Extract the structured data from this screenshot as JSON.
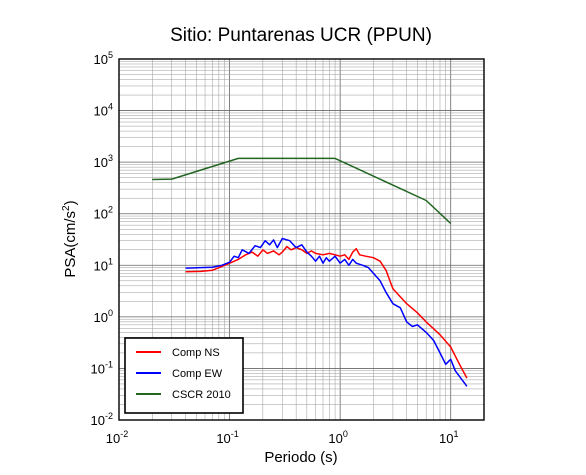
{
  "chart_data": {
    "type": "line",
    "title": "Sitio: Puntarenas UCR (PPUN)",
    "xlabel": "Periodo (s)",
    "ylabel_main": "PSA(cm/s",
    "ylabel_sup": "2",
    "ylabel_close": ")",
    "x_scale": "log",
    "y_scale": "log",
    "xlim": [
      0.01,
      20
    ],
    "ylim": [
      0.01,
      100000
    ],
    "grid": true,
    "legend_position": "bottom-left",
    "x_ticks": [
      {
        "base": "10",
        "exp": "-2",
        "value": 0.01
      },
      {
        "base": "10",
        "exp": "-1",
        "value": 0.1
      },
      {
        "base": "10",
        "exp": "0",
        "value": 1
      },
      {
        "base": "10",
        "exp": "1",
        "value": 10
      }
    ],
    "y_ticks": [
      {
        "base": "10",
        "exp": "-2",
        "value": 0.01
      },
      {
        "base": "10",
        "exp": "-1",
        "value": 0.1
      },
      {
        "base": "10",
        "exp": "0",
        "value": 1
      },
      {
        "base": "10",
        "exp": "1",
        "value": 10
      },
      {
        "base": "10",
        "exp": "2",
        "value": 100
      },
      {
        "base": "10",
        "exp": "3",
        "value": 1000
      },
      {
        "base": "10",
        "exp": "4",
        "value": 10000
      },
      {
        "base": "10",
        "exp": "5",
        "value": 100000
      }
    ],
    "series": [
      {
        "name": "Comp NS",
        "color": "#ff0000",
        "points": [
          [
            0.04,
            7.5
          ],
          [
            0.055,
            7.6
          ],
          [
            0.07,
            8.0
          ],
          [
            0.085,
            9.5
          ],
          [
            0.1,
            11
          ],
          [
            0.12,
            13
          ],
          [
            0.14,
            16
          ],
          [
            0.16,
            18
          ],
          [
            0.18,
            15
          ],
          [
            0.2,
            20
          ],
          [
            0.22,
            17
          ],
          [
            0.25,
            19
          ],
          [
            0.28,
            16
          ],
          [
            0.3,
            18
          ],
          [
            0.33,
            23
          ],
          [
            0.36,
            20
          ],
          [
            0.4,
            22
          ],
          [
            0.45,
            20
          ],
          [
            0.5,
            17
          ],
          [
            0.55,
            19
          ],
          [
            0.6,
            17
          ],
          [
            0.7,
            16
          ],
          [
            0.8,
            17
          ],
          [
            0.9,
            16
          ],
          [
            1.0,
            15
          ],
          [
            1.1,
            16
          ],
          [
            1.2,
            13
          ],
          [
            1.3,
            18
          ],
          [
            1.4,
            21
          ],
          [
            1.5,
            16
          ],
          [
            1.7,
            15
          ],
          [
            2.0,
            14
          ],
          [
            2.3,
            12
          ],
          [
            2.6,
            8
          ],
          [
            3.0,
            3.5
          ],
          [
            4.0,
            1.8
          ],
          [
            5.0,
            1.2
          ],
          [
            6.0,
            0.8
          ],
          [
            8.0,
            0.45
          ],
          [
            10.0,
            0.26
          ],
          [
            12.0,
            0.12
          ],
          [
            14.0,
            0.065
          ]
        ]
      },
      {
        "name": "Comp EW",
        "color": "#0000ff",
        "points": [
          [
            0.04,
            8.8
          ],
          [
            0.055,
            9.0
          ],
          [
            0.07,
            9.2
          ],
          [
            0.085,
            10
          ],
          [
            0.1,
            11.5
          ],
          [
            0.11,
            15
          ],
          [
            0.12,
            14
          ],
          [
            0.13,
            20
          ],
          [
            0.15,
            17
          ],
          [
            0.17,
            24
          ],
          [
            0.19,
            22
          ],
          [
            0.21,
            30
          ],
          [
            0.23,
            25
          ],
          [
            0.25,
            31
          ],
          [
            0.27,
            22
          ],
          [
            0.3,
            33
          ],
          [
            0.35,
            30
          ],
          [
            0.4,
            22
          ],
          [
            0.45,
            25
          ],
          [
            0.5,
            18
          ],
          [
            0.55,
            15
          ],
          [
            0.6,
            12
          ],
          [
            0.65,
            15
          ],
          [
            0.7,
            11
          ],
          [
            0.75,
            14
          ],
          [
            0.8,
            12
          ],
          [
            0.9,
            15
          ],
          [
            1.0,
            11
          ],
          [
            1.1,
            13
          ],
          [
            1.2,
            10
          ],
          [
            1.3,
            13
          ],
          [
            1.4,
            11
          ],
          [
            1.6,
            10
          ],
          [
            1.8,
            9
          ],
          [
            2.0,
            7
          ],
          [
            2.3,
            5
          ],
          [
            2.6,
            3
          ],
          [
            3.0,
            1.8
          ],
          [
            3.5,
            1.5
          ],
          [
            4.0,
            0.8
          ],
          [
            4.5,
            0.65
          ],
          [
            5.0,
            0.7
          ],
          [
            6.0,
            0.5
          ],
          [
            7.0,
            0.35
          ],
          [
            8.0,
            0.2
          ],
          [
            9.0,
            0.12
          ],
          [
            10.0,
            0.15
          ],
          [
            11.0,
            0.09
          ],
          [
            12.0,
            0.07
          ],
          [
            14.0,
            0.045
          ]
        ]
      },
      {
        "name": "CSCR 2010",
        "color": "#226622",
        "points": [
          [
            0.02,
            460
          ],
          [
            0.03,
            470
          ],
          [
            0.12,
            1180
          ],
          [
            0.9,
            1180
          ],
          [
            6.0,
            180
          ],
          [
            10.0,
            65
          ]
        ]
      }
    ]
  }
}
